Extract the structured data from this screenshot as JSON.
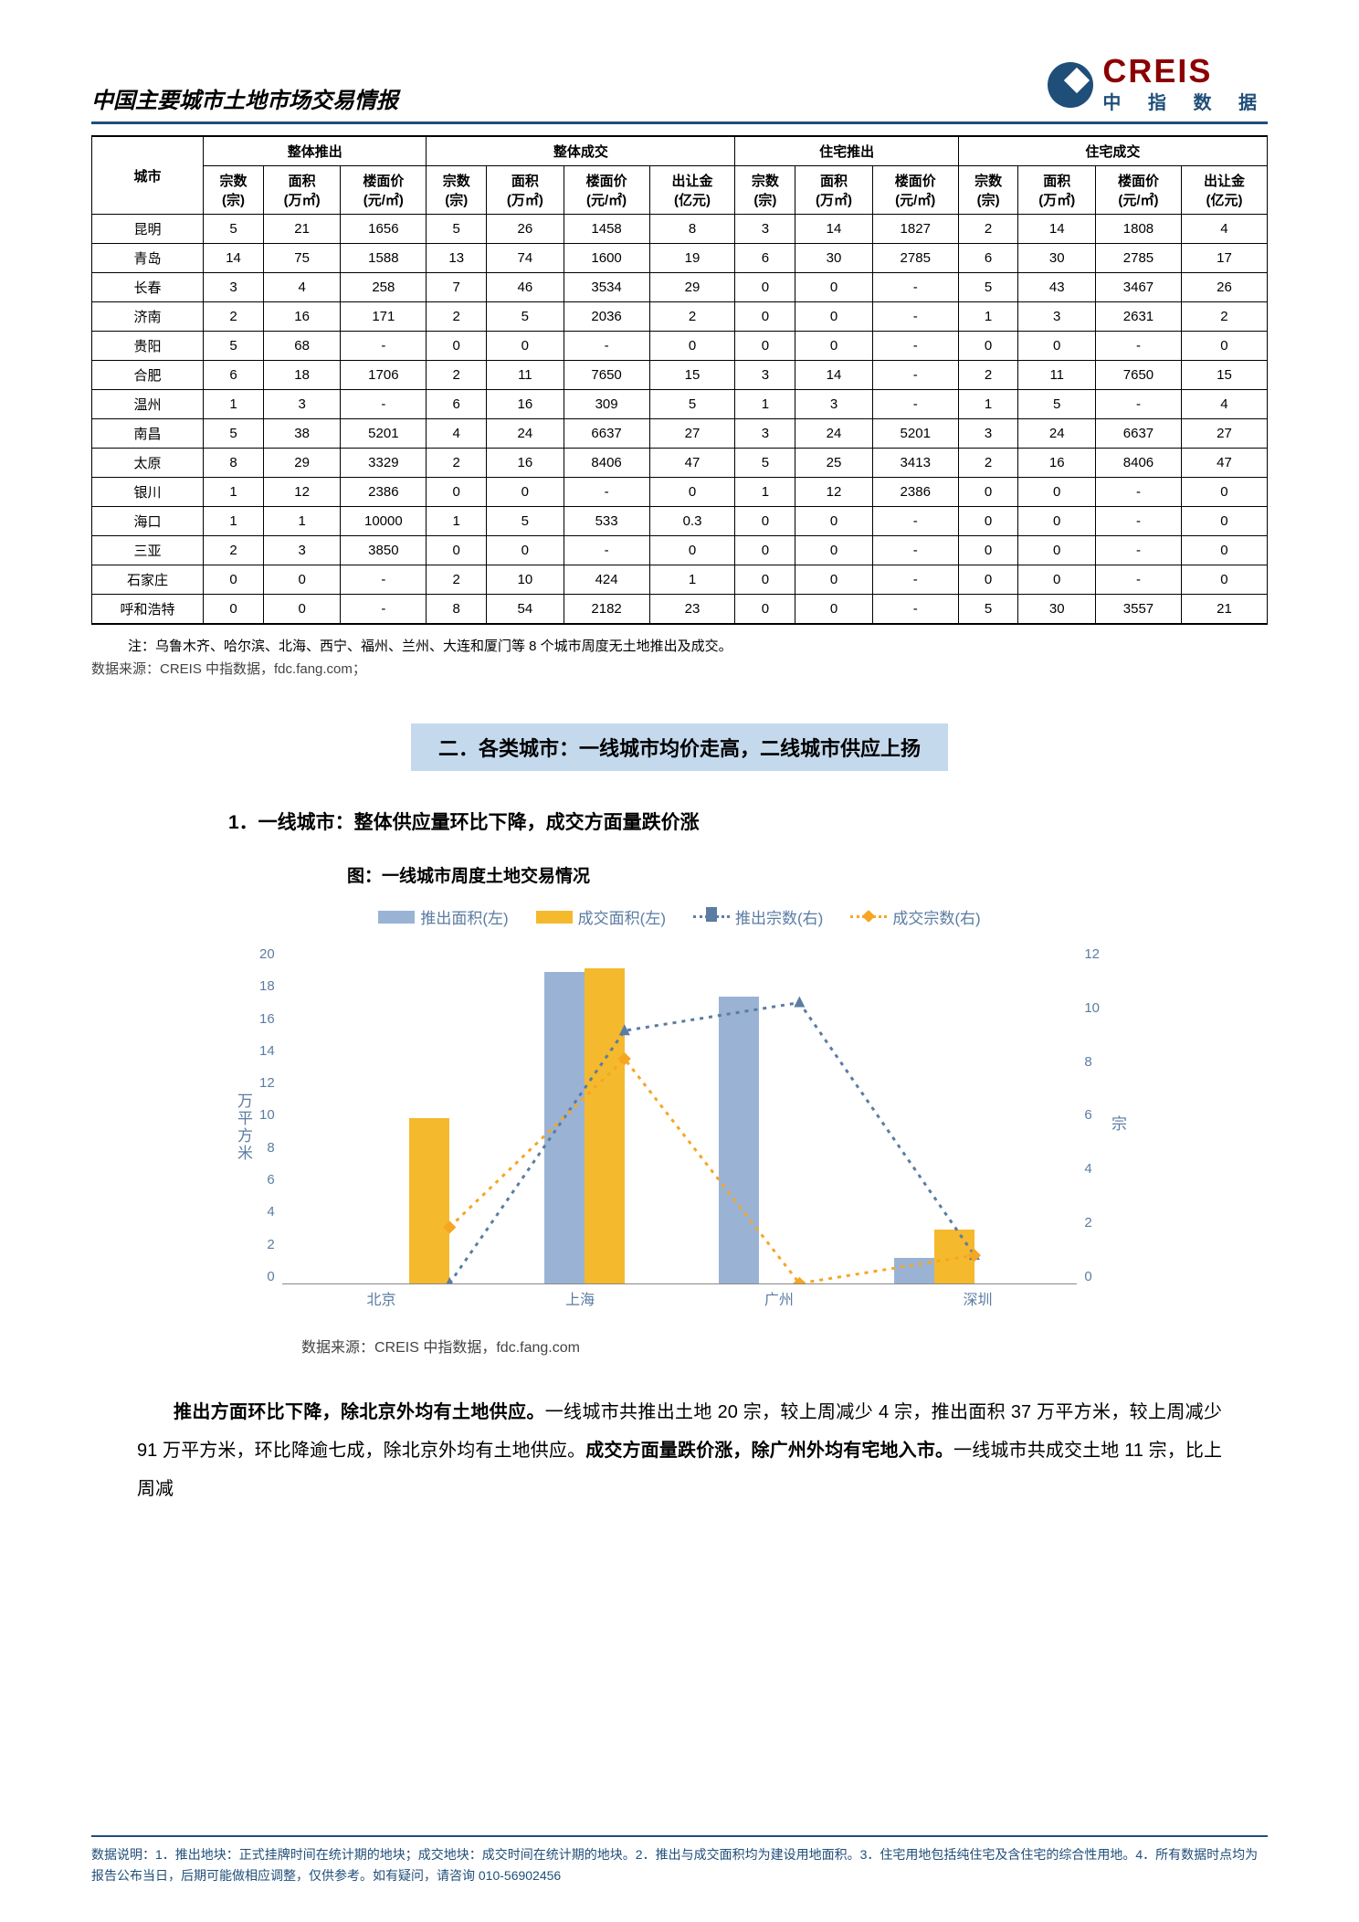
{
  "header": {
    "title": "中国主要城市土地市场交易情报",
    "logo_en": "CREIS",
    "logo_cn": "中 指 数 据"
  },
  "table": {
    "group_headers": [
      "城市",
      "整体推出",
      "整体成交",
      "住宅推出",
      "住宅成交"
    ],
    "sub_headers": {
      "g1": [
        "宗数(宗)",
        "面积(万㎡)",
        "楼面价(元/㎡)"
      ],
      "g2": [
        "宗数(宗)",
        "面积(万㎡)",
        "楼面价(元/㎡)",
        "出让金(亿元)"
      ],
      "g3": [
        "宗数(宗)",
        "面积(万㎡)",
        "楼面价(元/㎡)"
      ],
      "g4": [
        "宗数(宗)",
        "面积(万㎡)",
        "楼面价(元/㎡)",
        "出让金(亿元)"
      ]
    },
    "rows": [
      [
        "昆明",
        "5",
        "21",
        "1656",
        "5",
        "26",
        "1458",
        "8",
        "3",
        "14",
        "1827",
        "2",
        "14",
        "1808",
        "4"
      ],
      [
        "青岛",
        "14",
        "75",
        "1588",
        "13",
        "74",
        "1600",
        "19",
        "6",
        "30",
        "2785",
        "6",
        "30",
        "2785",
        "17"
      ],
      [
        "长春",
        "3",
        "4",
        "258",
        "7",
        "46",
        "3534",
        "29",
        "0",
        "0",
        "-",
        "5",
        "43",
        "3467",
        "26"
      ],
      [
        "济南",
        "2",
        "16",
        "171",
        "2",
        "5",
        "2036",
        "2",
        "0",
        "0",
        "-",
        "1",
        "3",
        "2631",
        "2"
      ],
      [
        "贵阳",
        "5",
        "68",
        "-",
        "0",
        "0",
        "-",
        "0",
        "0",
        "0",
        "-",
        "0",
        "0",
        "-",
        "0"
      ],
      [
        "合肥",
        "6",
        "18",
        "1706",
        "2",
        "11",
        "7650",
        "15",
        "3",
        "14",
        "-",
        "2",
        "11",
        "7650",
        "15"
      ],
      [
        "温州",
        "1",
        "3",
        "-",
        "6",
        "16",
        "309",
        "5",
        "1",
        "3",
        "-",
        "1",
        "5",
        "-",
        "4"
      ],
      [
        "南昌",
        "5",
        "38",
        "5201",
        "4",
        "24",
        "6637",
        "27",
        "3",
        "24",
        "5201",
        "3",
        "24",
        "6637",
        "27"
      ],
      [
        "太原",
        "8",
        "29",
        "3329",
        "2",
        "16",
        "8406",
        "47",
        "5",
        "25",
        "3413",
        "2",
        "16",
        "8406",
        "47"
      ],
      [
        "银川",
        "1",
        "12",
        "2386",
        "0",
        "0",
        "-",
        "0",
        "1",
        "12",
        "2386",
        "0",
        "0",
        "-",
        "0"
      ],
      [
        "海口",
        "1",
        "1",
        "10000",
        "1",
        "5",
        "533",
        "0.3",
        "0",
        "0",
        "-",
        "0",
        "0",
        "-",
        "0"
      ],
      [
        "三亚",
        "2",
        "3",
        "3850",
        "0",
        "0",
        "-",
        "0",
        "0",
        "0",
        "-",
        "0",
        "0",
        "-",
        "0"
      ],
      [
        "石家庄",
        "0",
        "0",
        "-",
        "2",
        "10",
        "424",
        "1",
        "0",
        "0",
        "-",
        "0",
        "0",
        "-",
        "0"
      ],
      [
        "呼和浩特",
        "0",
        "0",
        "-",
        "8",
        "54",
        "2182",
        "23",
        "0",
        "0",
        "-",
        "5",
        "30",
        "3557",
        "21"
      ]
    ],
    "note": "注：乌鲁木齐、哈尔滨、北海、西宁、福州、兰州、大连和厦门等 8 个城市周度无土地推出及成交。",
    "source": "数据来源：CREIS 中指数据，fdc.fang.com；"
  },
  "section": {
    "title": "二．各类城市：一线城市均价走高，二线城市供应上扬",
    "sub": "1．一线城市：整体供应量环比下降，成交方面量跌价涨",
    "chart_caption": "图：一线城市周度土地交易情况"
  },
  "chart": {
    "legend": [
      "推出面积(左)",
      "成交面积(左)",
      "推出宗数(右)",
      "成交宗数(右)"
    ],
    "y_left_label": "万平方米",
    "y_right_label": "宗",
    "y_left_ticks": [
      "20",
      "18",
      "16",
      "14",
      "12",
      "10",
      "8",
      "6",
      "4",
      "2",
      "0"
    ],
    "y_right_ticks": [
      "12",
      "10",
      "8",
      "6",
      "4",
      "2",
      "0"
    ],
    "y_left_max": 20,
    "y_right_max": 12,
    "categories": [
      "北京",
      "上海",
      "广州",
      "深圳"
    ],
    "bar_push_area": [
      0,
      18.5,
      17,
      1.5
    ],
    "bar_deal_area": [
      9.8,
      18.7,
      0,
      3.2
    ],
    "line_push_count": [
      0,
      9,
      10,
      1
    ],
    "line_deal_count": [
      2,
      8,
      0,
      1
    ],
    "colors": {
      "bar_blue": "#9ab3d5",
      "bar_orange": "#f5b92e",
      "line_blue": "#5b7ca3",
      "line_orange": "#f5a623"
    },
    "source": "数据来源：CREIS 中指数据，fdc.fang.com"
  },
  "body": {
    "p1_bold": "推出方面环比下降，除北京外均有土地供应。",
    "p1_rest": "一线城市共推出土地 20 宗，较上周减少 4 宗，推出面积 37 万平方米，较上周减少 91 万平方米，环比降逾七成，除北京外均有土地供应。",
    "p2_bold": "成交方面量跌价涨，除广州外均有宅地入市。",
    "p2_rest": "一线城市共成交土地 11 宗，比上周减"
  },
  "footer": "数据说明：1．推出地块：正式挂牌时间在统计期的地块；成交地块：成交时间在统计期的地块。2．推出与成交面积均为建设用地面积。3．住宅用地包括纯住宅及含住宅的综合性用地。4．所有数据时点均为报告公布当日，后期可能做相应调整，仅供参考。如有疑问，请咨询 010-56902456"
}
